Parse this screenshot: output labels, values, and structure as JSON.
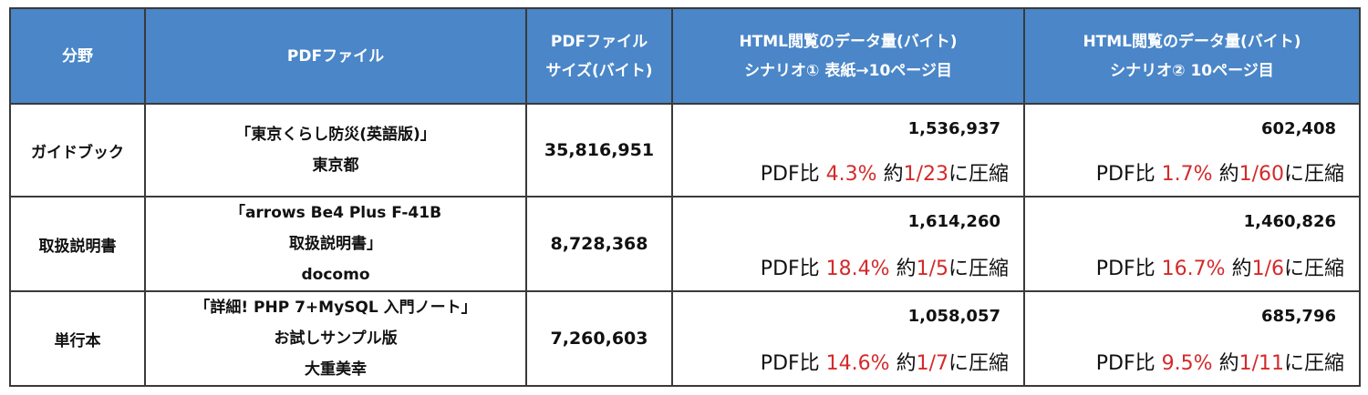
{
  "headers": {
    "category": "分野",
    "pdf_file": "PDFファイル",
    "size_line1": "PDFファイル",
    "size_line2": "サイズ(バイト)",
    "s1_line1": "HTML閲覧のデータ量(バイト)",
    "s1_line2": "シナリオ① 表紙→10ページ目",
    "s2_line1": "HTML閲覧のデータ量(バイト)",
    "s2_line2": "シナリオ② 10ページ目"
  },
  "labels": {
    "pdf_ratio": "PDF比",
    "approx": "約",
    "compress": "に圧縮"
  },
  "rows": [
    {
      "category": "ガイドブック",
      "file": [
        "「東京くらし防災(英語版)」",
        "東京都"
      ],
      "size": "35,816,951",
      "s1": {
        "bytes": "1,536,937",
        "pct": "4.3%",
        "frac": "1/23"
      },
      "s2": {
        "bytes": "602,408",
        "pct": "1.7%",
        "frac": "1/60"
      }
    },
    {
      "category": "取扱説明書",
      "file": [
        "「arrows Be4 Plus F-41B",
        "取扱説明書」",
        "docomo"
      ],
      "size": "8,728,368",
      "s1": {
        "bytes": "1,614,260",
        "pct": "18.4%",
        "frac": "1/5"
      },
      "s2": {
        "bytes": "1,460,826",
        "pct": "16.7%",
        "frac": "1/6"
      }
    },
    {
      "category": "単行本",
      "file": [
        "「詳細! PHP 7+MySQL 入門ノート」",
        "お試しサンプル版",
        "大重美幸"
      ],
      "size": "7,260,603",
      "s1": {
        "bytes": "1,058,057",
        "pct": "14.6%",
        "frac": "1/7"
      },
      "s2": {
        "bytes": "685,796",
        "pct": "9.5%",
        "frac": "1/11"
      }
    }
  ],
  "colors": {
    "header_bg": "#4a86c8",
    "highlight": "#d42a2a"
  }
}
